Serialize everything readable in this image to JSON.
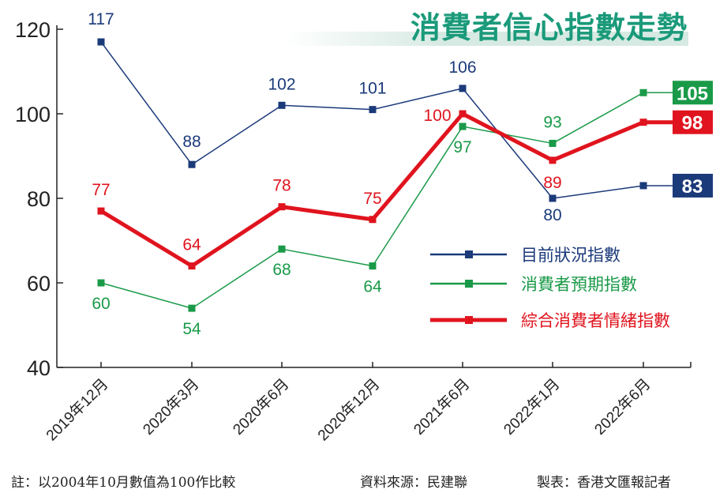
{
  "chart_data": {
    "type": "line",
    "title": "消費者信心指數走勢",
    "categories": [
      "2019年12月",
      "2020年3月",
      "2020年6月",
      "2020年12月",
      "2021年6月",
      "2022年1月",
      "2022年6月"
    ],
    "ylim": [
      40,
      120
    ],
    "yticks": [
      "40",
      "60",
      "80",
      "100",
      "120"
    ],
    "grid": false,
    "legend_position": "center-right",
    "series": [
      {
        "name": "目前狀況指數",
        "color": "#1b3a7a",
        "values": [
          117,
          88,
          102,
          101,
          106,
          80,
          83
        ]
      },
      {
        "name": "消費者預期指數",
        "color": "#1a9a48",
        "values": [
          60,
          54,
          68,
          64,
          97,
          93,
          105
        ]
      },
      {
        "name": "綜合消費者情緒指數",
        "color": "#e0141e",
        "values": [
          77,
          64,
          78,
          75,
          100,
          89,
          98
        ]
      }
    ]
  },
  "footer": {
    "note": "註：以2004年10月數值為100作比較",
    "source": "資料來源：民建聯",
    "credit": "製表：香港文匯報記者"
  }
}
